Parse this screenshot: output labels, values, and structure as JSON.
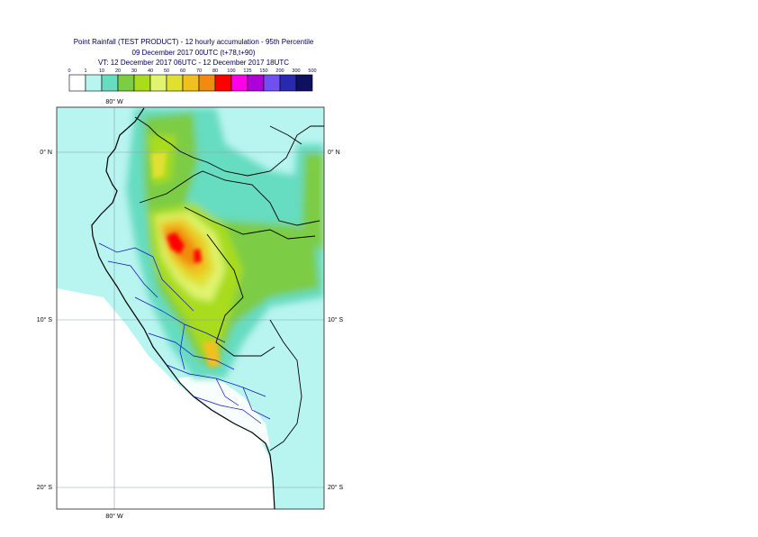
{
  "title": {
    "line1": "Point Rainfall (TEST PRODUCT) - 12 hourly accumulation - 95th Percentile",
    "line2": "09 December 2017 00UTC (t+78,t+90)",
    "line3": "VT: 12 December 2017 06UTC - 12 December 2017 18UTC"
  },
  "legend": {
    "thresholds": [
      "0",
      "1",
      "10",
      "20",
      "30",
      "40",
      "50",
      "60",
      "70",
      "80",
      "100",
      "125",
      "150",
      "200",
      "300",
      "500"
    ],
    "colors": [
      "#ffffff",
      "#b8f4f0",
      "#66dcc0",
      "#7ccc44",
      "#a8dc1c",
      "#e0f470",
      "#e0e030",
      "#f0c020",
      "#f08a10",
      "#ff0000",
      "#ff00e8",
      "#b000d8",
      "#7050f0",
      "#2828b0",
      "#101060"
    ]
  },
  "map": {
    "lon_labels": [
      "80° W",
      "80° W"
    ],
    "lat_labels_left": [
      "0° N",
      "10° S",
      "20° S"
    ],
    "lat_labels_right": [
      "0° N",
      "10° S",
      "20° S"
    ]
  }
}
